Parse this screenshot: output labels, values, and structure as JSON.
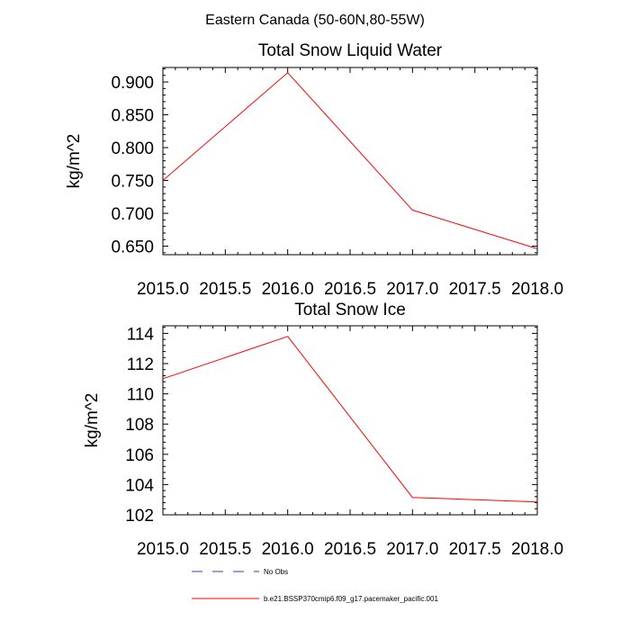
{
  "figure": {
    "suptitle": "Eastern Canada (50-60N,80-55W)"
  },
  "chart_data": [
    {
      "type": "line",
      "title": "Total Snow Liquid Water",
      "xlabel": "",
      "ylabel": "kg/m^2",
      "xlim": [
        2015.0,
        2018.0
      ],
      "ylim": [
        0.637,
        0.922
      ],
      "xticks": [
        2015.0,
        2015.5,
        2016.0,
        2016.5,
        2017.0,
        2017.5,
        2018.0
      ],
      "xtick_labels": [
        "2015.0",
        "2015.5",
        "2016.0",
        "2016.5",
        "2017.0",
        "2017.5",
        "2018.0"
      ],
      "yticks": [
        0.65,
        0.7,
        0.75,
        0.8,
        0.85,
        0.9
      ],
      "ytick_labels": [
        "0.650",
        "0.700",
        "0.750",
        "0.800",
        "0.850",
        "0.900"
      ],
      "series": [
        {
          "name": "b.e21.BSSP370cmip6.f09_g17.pacemaker_pacific.001",
          "color": "#ff0000",
          "x": [
            2015,
            2016,
            2017,
            2018
          ],
          "y": [
            0.75,
            0.914,
            0.705,
            0.646
          ]
        }
      ]
    },
    {
      "type": "line",
      "title": "Total Snow Ice",
      "xlabel": "",
      "ylabel": "kg/m^2",
      "xlim": [
        2015.0,
        2018.0
      ],
      "ylim": [
        102.0,
        114.5
      ],
      "xticks": [
        2015.0,
        2015.5,
        2016.0,
        2016.5,
        2017.0,
        2017.5,
        2018.0
      ],
      "xtick_labels": [
        "2015.0",
        "2015.5",
        "2016.0",
        "2016.5",
        "2017.0",
        "2017.5",
        "2018.0"
      ],
      "yticks": [
        102,
        104,
        106,
        108,
        110,
        112,
        114
      ],
      "ytick_labels": [
        "102",
        "104",
        "106",
        "108",
        "110",
        "112",
        "114"
      ],
      "series": [
        {
          "name": "b.e21.BSSP370cmip6.f09_g17.pacemaker_pacific.001",
          "color": "#ff0000",
          "x": [
            2015,
            2016,
            2017,
            2018
          ],
          "y": [
            111.0,
            113.8,
            103.15,
            102.85
          ]
        }
      ]
    }
  ],
  "legend": {
    "items": [
      {
        "label": "No Obs",
        "color": "#3a3aa0",
        "style": "dashed"
      },
      {
        "label": "b.e21.BSSP370cmip6.f09_g17.pacemaker_pacific.001",
        "color": "#ff0000",
        "style": "solid"
      }
    ]
  }
}
